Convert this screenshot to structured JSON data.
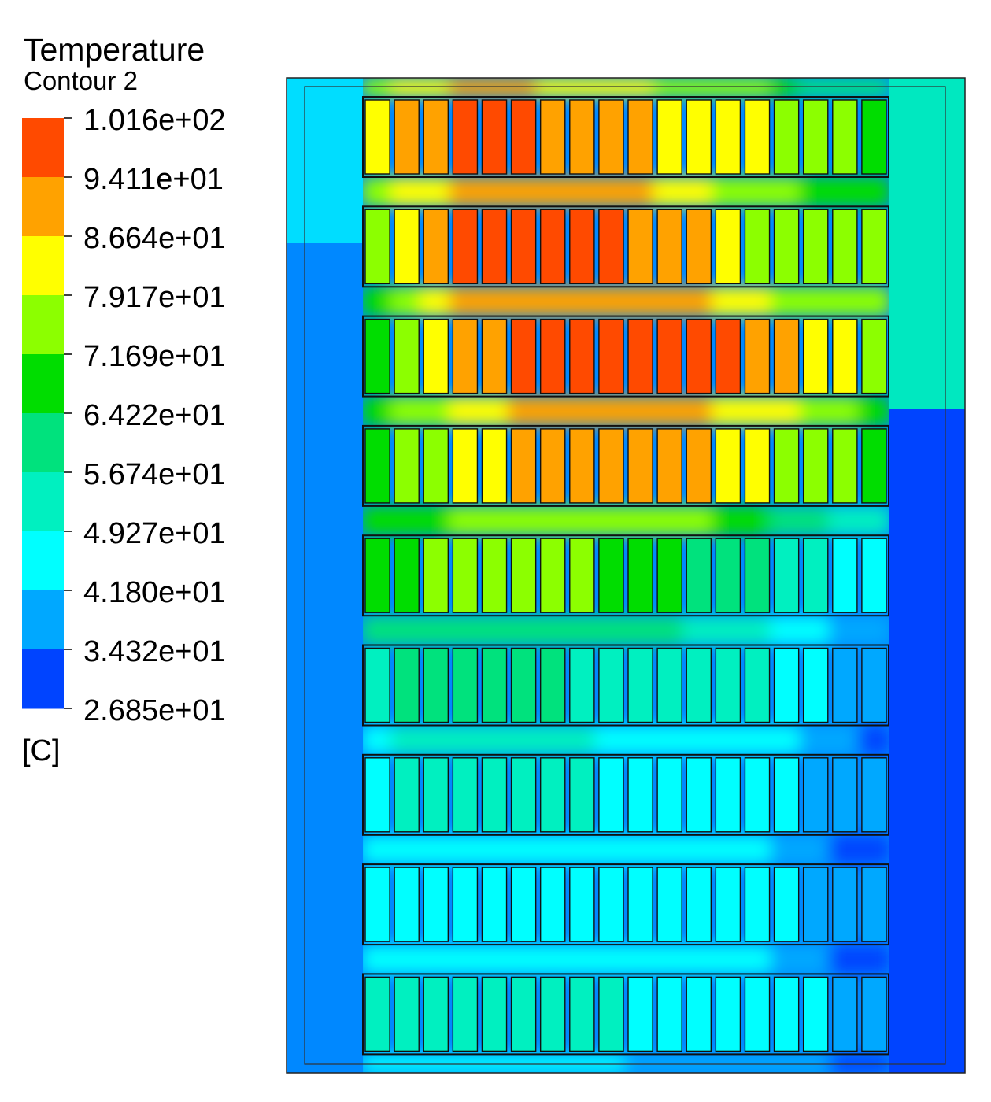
{
  "legend": {
    "title": "Temperature",
    "subtitle": "Contour 2",
    "unit": "[C]",
    "tick_labels": [
      "1.016e+02",
      "9.411e+01",
      "8.664e+01",
      "7.917e+01",
      "7.169e+01",
      "6.422e+01",
      "5.674e+01",
      "4.927e+01",
      "4.180e+01",
      "3.432e+01",
      "2.685e+01"
    ],
    "band_colors": [
      "#ff4a00",
      "#ffa200",
      "#ffff00",
      "#8cff00",
      "#00dd00",
      "#00e27d",
      "#00f0c0",
      "#00ffff",
      "#00a8ff",
      "#0044ff"
    ]
  },
  "chart_data": {
    "type": "heatmap",
    "title": "Temperature",
    "subtitle": "Contour 2",
    "unit": "[C]",
    "colorbar": {
      "min": 26.85,
      "max": 101.6,
      "levels": [
        101.6,
        94.11,
        86.64,
        79.17,
        71.69,
        64.22,
        56.74,
        49.27,
        41.8,
        34.32,
        26.85
      ]
    },
    "grid": {
      "rows": 9,
      "cols": 18
    },
    "row_cell_temperatures": [
      [
        83,
        90,
        90,
        98,
        98,
        98,
        94,
        94,
        90,
        90,
        83,
        83,
        83,
        83,
        76,
        72,
        72,
        70
      ],
      [
        76,
        83,
        90,
        98,
        98,
        98,
        98,
        98,
        98,
        94,
        90,
        90,
        83,
        79,
        76,
        76,
        76,
        76
      ],
      [
        70,
        76,
        83,
        90,
        90,
        98,
        98,
        98,
        98,
        98,
        98,
        98,
        98,
        94,
        90,
        83,
        83,
        79
      ],
      [
        70,
        76,
        79,
        83,
        83,
        90,
        90,
        90,
        90,
        90,
        90,
        90,
        83,
        83,
        79,
        76,
        72,
        70
      ],
      [
        70,
        70,
        72,
        72,
        72,
        72,
        72,
        72,
        68,
        68,
        68,
        62,
        62,
        60,
        56,
        52,
        48,
        46
      ],
      [
        55,
        62,
        62,
        62,
        62,
        62,
        60,
        56,
        56,
        56,
        56,
        56,
        56,
        52,
        48,
        48,
        40,
        38
      ],
      [
        48,
        52,
        52,
        52,
        52,
        52,
        52,
        52,
        48,
        48,
        48,
        48,
        48,
        48,
        46,
        40,
        38,
        38
      ],
      [
        46,
        46,
        46,
        46,
        46,
        46,
        46,
        46,
        46,
        46,
        46,
        46,
        46,
        46,
        44,
        40,
        38,
        38
      ],
      [
        52,
        52,
        52,
        52,
        52,
        52,
        52,
        52,
        52,
        48,
        48,
        48,
        48,
        48,
        46,
        44,
        38,
        38
      ]
    ]
  }
}
